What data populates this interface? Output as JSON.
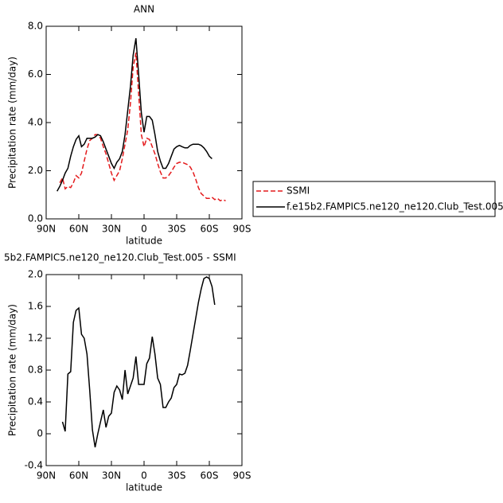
{
  "chart_data": [
    {
      "type": "line",
      "title": "ANN",
      "x_label": "latitude",
      "y_label": "Precipitation rate (mm/day)",
      "x": [
        80,
        77.5,
        75,
        72.5,
        70,
        67.5,
        65,
        62.5,
        60,
        57.5,
        55,
        52.5,
        50,
        47.5,
        45,
        42.5,
        40,
        37.5,
        35,
        32.5,
        30,
        27.5,
        25,
        22.5,
        20,
        17.5,
        15,
        12.5,
        10,
        7.5,
        5,
        2.5,
        0,
        -2.5,
        -5,
        -7.5,
        -10,
        -12.5,
        -15,
        -17.5,
        -20,
        -22.5,
        -25,
        -27.5,
        -30,
        -32.5,
        -35,
        -37.5,
        -40,
        -42.5,
        -45,
        -47.5,
        -50,
        -52.5,
        -55,
        -57.5,
        -60,
        -62.5,
        -65,
        -67.5,
        -70,
        -72.5,
        -75
      ],
      "series": [
        {
          "name": "SSMI",
          "color": "#e41a1c",
          "dashed": true,
          "values": [
            null,
            1.5,
            1.7,
            1.25,
            1.35,
            1.3,
            1.5,
            1.8,
            1.7,
            1.9,
            2.4,
            2.9,
            3.25,
            3.35,
            3.5,
            3.5,
            3.35,
            3.0,
            2.7,
            2.3,
            1.9,
            1.6,
            1.8,
            2.0,
            2.5,
            3.1,
            3.7,
            4.8,
            6.3,
            6.9,
            5.2,
            3.5,
            3.0,
            3.35,
            3.3,
            3.0,
            2.7,
            2.3,
            1.95,
            1.7,
            1.7,
            1.8,
            1.95,
            2.15,
            2.3,
            2.35,
            2.35,
            2.3,
            2.25,
            2.15,
            1.95,
            1.65,
            1.3,
            1.05,
            0.95,
            0.85,
            0.85,
            0.9,
            0.8,
            0.85,
            0.75,
            0.8,
            0.75
          ]
        },
        {
          "name": "f.e15b2.FAMPIC5.ne120_ne120.Club_Test.005",
          "color": "#000000",
          "dashed": false,
          "values": [
            1.15,
            1.35,
            1.6,
            1.9,
            2.1,
            2.6,
            3.0,
            3.3,
            3.45,
            3.0,
            3.1,
            3.35,
            3.35,
            3.35,
            3.4,
            3.5,
            3.45,
            3.2,
            2.9,
            2.6,
            2.3,
            2.1,
            2.35,
            2.5,
            2.8,
            3.5,
            4.5,
            5.5,
            6.8,
            7.5,
            6.0,
            4.4,
            3.6,
            4.25,
            4.25,
            4.1,
            3.5,
            2.8,
            2.4,
            2.1,
            2.1,
            2.3,
            2.6,
            2.9,
            3.0,
            3.05,
            3.0,
            2.95,
            2.95,
            3.05,
            3.1,
            3.1,
            3.1,
            3.05,
            2.95,
            2.8,
            2.6,
            2.5,
            null,
            null,
            null,
            null,
            null
          ]
        }
      ],
      "xlim": [
        90,
        -90
      ],
      "xticks": [
        {
          "value": 90,
          "label": "90N"
        },
        {
          "value": 60,
          "label": "60N"
        },
        {
          "value": 30,
          "label": "30N"
        },
        0,
        {
          "value": -30,
          "label": "30S"
        },
        {
          "value": -60,
          "label": "60S"
        },
        {
          "value": -90,
          "label": "90S"
        }
      ],
      "ylim": [
        0,
        8
      ],
      "yticks": [
        {
          "value": 0,
          "label": "0.0"
        },
        {
          "value": 2,
          "label": "2.0"
        },
        {
          "value": 4,
          "label": "4.0"
        },
        {
          "value": 6,
          "label": "6.0"
        },
        {
          "value": 8,
          "label": "8.0"
        }
      ],
      "legend": "right"
    },
    {
      "type": "line",
      "title": "5b2.FAMPIC5.ne120_ne120.Club_Test.005 - SSMI",
      "x_label": "latitude",
      "y_label": "Precipitation rate (mm/day)",
      "x": [
        75,
        72.5,
        70,
        67.5,
        65,
        62.5,
        60,
        57.5,
        55,
        52.5,
        50,
        47.5,
        45,
        42.5,
        40,
        37.5,
        35,
        32.5,
        30,
        27.5,
        25,
        22.5,
        20,
        17.5,
        15,
        12.5,
        10,
        7.5,
        5,
        2.5,
        0,
        -2.5,
        -5,
        -7.5,
        -10,
        -12.5,
        -15,
        -17.5,
        -20,
        -22.5,
        -25,
        -27.5,
        -30,
        -32.5,
        -35,
        -37.5,
        -40,
        -42.5,
        -45,
        -47.5,
        -50,
        -52.5,
        -55,
        -57.5,
        -60,
        -62.5,
        -65
      ],
      "series": [
        {
          "color": "#000000",
          "dashed": false,
          "values": [
            0.15,
            0.03,
            0.75,
            0.78,
            1.4,
            1.55,
            1.58,
            1.25,
            1.2,
            1.0,
            0.55,
            0.05,
            -0.17,
            0.0,
            0.15,
            0.3,
            0.08,
            0.22,
            0.26,
            0.52,
            0.6,
            0.55,
            0.43,
            0.8,
            0.5,
            0.6,
            0.7,
            0.97,
            0.62,
            0.62,
            0.62,
            0.88,
            0.95,
            1.22,
            1.0,
            0.7,
            0.62,
            0.33,
            0.33,
            0.4,
            0.45,
            0.58,
            0.62,
            0.75,
            0.74,
            0.76,
            0.86,
            1.05,
            1.25,
            1.45,
            1.65,
            1.82,
            1.95,
            1.97,
            1.95,
            1.85,
            1.62
          ]
        }
      ],
      "xlim": [
        90,
        -90
      ],
      "xticks": [
        {
          "value": 90,
          "label": "90N"
        },
        {
          "value": 60,
          "label": "60N"
        },
        {
          "value": 30,
          "label": "30N"
        },
        0,
        {
          "value": -30,
          "label": "30S"
        },
        {
          "value": -60,
          "label": "60S"
        },
        {
          "value": -90,
          "label": "90S"
        }
      ],
      "ylim": [
        -0.4,
        2.0
      ],
      "yticks": [
        -0.4,
        0.0,
        0.4,
        0.8,
        1.2,
        1.6,
        {
          "value": 2,
          "label": "2.0"
        }
      ]
    }
  ]
}
